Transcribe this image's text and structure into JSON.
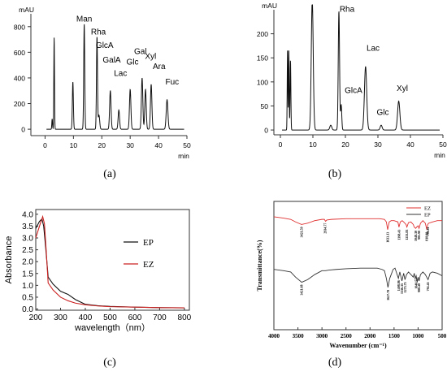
{
  "panel_labels": [
    "(a)",
    "(b)",
    "(c)",
    "(d)"
  ],
  "chart_data": [
    {
      "id": "a",
      "type": "line",
      "xlabel": "min",
      "ylabel": "mAU",
      "xlim": [
        -5,
        50
      ],
      "ylim": [
        -50,
        900
      ],
      "xticks": [
        0,
        10,
        20,
        30,
        40,
        50
      ],
      "yticks": [
        0,
        200,
        400,
        600,
        800
      ],
      "color": "#111111",
      "peaks": [
        {
          "t": 2.5,
          "h": 80,
          "w": 0.12
        },
        {
          "t": 3.2,
          "h": 715,
          "w": 0.12
        },
        {
          "t": 9.8,
          "h": 370,
          "w": 0.18
        },
        {
          "t": 13.8,
          "h": 820,
          "w": 0.18
        },
        {
          "t": 18.3,
          "h": 720,
          "w": 0.18
        },
        {
          "t": 19.0,
          "h": 110,
          "w": 0.25
        },
        {
          "t": 23.0,
          "h": 300,
          "w": 0.25
        },
        {
          "t": 26.0,
          "h": 150,
          "w": 0.25
        },
        {
          "t": 30.0,
          "h": 310,
          "w": 0.25
        },
        {
          "t": 34.2,
          "h": 400,
          "w": 0.25
        },
        {
          "t": 35.4,
          "h": 310,
          "w": 0.25
        },
        {
          "t": 37.4,
          "h": 350,
          "w": 0.25
        },
        {
          "t": 43.0,
          "h": 230,
          "w": 0.3
        }
      ],
      "annotations": [
        {
          "text": "Man",
          "t": 13.8,
          "y": 840
        },
        {
          "text": "Rha",
          "t": 18.8,
          "y": 740
        },
        {
          "text": "GlcA",
          "t": 21.0,
          "y": 635
        },
        {
          "text": "GalA",
          "t": 23.5,
          "y": 520
        },
        {
          "text": "Lac",
          "t": 26.6,
          "y": 415
        },
        {
          "text": "Glc",
          "t": 30.8,
          "y": 505
        },
        {
          "text": "Gal",
          "t": 33.6,
          "y": 585
        },
        {
          "text": "Xyl",
          "t": 37.2,
          "y": 548
        },
        {
          "text": "Ara",
          "t": 40.2,
          "y": 470
        },
        {
          "text": "Fuc",
          "t": 44.8,
          "y": 348
        }
      ]
    },
    {
      "id": "b",
      "type": "line",
      "xlabel": "min",
      "ylabel": "mAU",
      "xlim": [
        -2,
        50
      ],
      "ylim": [
        -10,
        250
      ],
      "xticks": [
        0,
        10,
        20,
        30,
        40,
        50
      ],
      "yticks": [
        0,
        50,
        100,
        150,
        200
      ],
      "color": "#111111",
      "peaks": [
        {
          "t": 2.2,
          "h": 170,
          "w": 0.1
        },
        {
          "t": 2.6,
          "h": 165,
          "w": 0.1
        },
        {
          "t": 3.1,
          "h": 145,
          "w": 0.12
        },
        {
          "t": 9.8,
          "h": 270,
          "w": 0.3
        },
        {
          "t": 15.5,
          "h": 10,
          "w": 0.3
        },
        {
          "t": 18.0,
          "h": 247,
          "w": 0.2
        },
        {
          "t": 18.7,
          "h": 52,
          "w": 0.18
        },
        {
          "t": 26.2,
          "h": 132,
          "w": 0.35
        },
        {
          "t": 31.0,
          "h": 10,
          "w": 0.3
        },
        {
          "t": 36.4,
          "h": 60,
          "w": 0.35
        }
      ],
      "annotations": [
        {
          "text": "Rha",
          "t": 20.5,
          "y": 246
        },
        {
          "text": "Lac",
          "t": 28.5,
          "y": 165
        },
        {
          "text": "GlcA",
          "t": 22.5,
          "y": 77
        },
        {
          "text": "Glc",
          "t": 31.5,
          "y": 31
        },
        {
          "text": "Xyl",
          "t": 37.5,
          "y": 81
        }
      ]
    },
    {
      "id": "c",
      "type": "line",
      "xlabel": "wavelength（nm）",
      "ylabel": "Absorbance",
      "xlim": [
        200,
        820
      ],
      "ylim": [
        -0.05,
        4.2
      ],
      "xticks": [
        200,
        300,
        400,
        500,
        600,
        700,
        800
      ],
      "yticks": [
        0.0,
        0.5,
        1.0,
        1.5,
        2.0,
        2.5,
        3.0,
        3.5,
        4.0
      ],
      "legend": "right",
      "series": [
        {
          "name": "EP",
          "color": "#111111",
          "x": [
            200,
            215,
            225,
            232,
            240,
            250,
            270,
            300,
            330,
            360,
            400,
            450,
            500,
            600,
            700,
            800
          ],
          "y": [
            3.4,
            3.7,
            3.8,
            3.5,
            2.6,
            1.35,
            1.05,
            0.75,
            0.62,
            0.4,
            0.2,
            0.14,
            0.11,
            0.08,
            0.06,
            0.05
          ]
        },
        {
          "name": "EZ",
          "color": "#cc2222",
          "x": [
            200,
            215,
            228,
            235,
            242,
            250,
            270,
            300,
            330,
            360,
            400,
            450,
            500,
            600,
            700,
            800
          ],
          "y": [
            3.0,
            3.5,
            3.9,
            3.6,
            2.5,
            1.1,
            0.8,
            0.5,
            0.35,
            0.25,
            0.18,
            0.13,
            0.1,
            0.08,
            0.06,
            0.05
          ]
        }
      ]
    },
    {
      "id": "d",
      "type": "line",
      "xlabel": "Wavenumber (cm⁻¹)",
      "ylabel": "Transmittance(%)",
      "xlim": [
        4000,
        500
      ],
      "ylim": [
        0,
        1
      ],
      "xticks": [
        4000,
        3500,
        3000,
        2500,
        2000,
        1500,
        1000,
        500
      ],
      "legend": "top-right",
      "series": [
        {
          "name": "EZ",
          "color": "#e03030",
          "x": [
            4000,
            3800,
            3650,
            3550,
            3425,
            3300,
            3150,
            3000,
            2950,
            2925,
            2900,
            2800,
            2500,
            2000,
            1800,
            1700,
            1660,
            1633,
            1600,
            1560,
            1500,
            1420,
            1398,
            1370,
            1330,
            1300,
            1250,
            1233,
            1200,
            1150,
            1100,
            1080,
            1050,
            1030,
            1000,
            980,
            950,
            900,
            850,
            818,
            800,
            780,
            700,
            600,
            500
          ],
          "y": [
            0.88,
            0.87,
            0.86,
            0.84,
            0.82,
            0.83,
            0.85,
            0.86,
            0.86,
            0.845,
            0.855,
            0.86,
            0.865,
            0.865,
            0.865,
            0.86,
            0.84,
            0.78,
            0.84,
            0.85,
            0.85,
            0.84,
            0.8,
            0.84,
            0.85,
            0.84,
            0.82,
            0.8,
            0.835,
            0.84,
            0.82,
            0.8,
            0.79,
            0.8,
            0.81,
            0.79,
            0.83,
            0.85,
            0.83,
            0.78,
            0.82,
            0.83,
            0.84,
            0.85,
            0.85
          ]
        },
        {
          "name": "EP",
          "color": "#333333",
          "x": [
            4000,
            3800,
            3650,
            3550,
            3421,
            3300,
            3150,
            3000,
            2930,
            2850,
            2700,
            2500,
            2200,
            2000,
            1850,
            1750,
            1700,
            1660,
            1627,
            1590,
            1560,
            1520,
            1480,
            1410,
            1380,
            1336,
            1300,
            1273,
            1240,
            1200,
            1150,
            1100,
            1080,
            1060,
            1040,
            1020,
            1000,
            980,
            950,
            900,
            850,
            792,
            750,
            700,
            600,
            500
          ],
          "y": [
            0.47,
            0.46,
            0.45,
            0.41,
            0.37,
            0.39,
            0.43,
            0.46,
            0.46,
            0.465,
            0.47,
            0.475,
            0.48,
            0.48,
            0.48,
            0.47,
            0.46,
            0.4,
            0.33,
            0.4,
            0.43,
            0.47,
            0.48,
            0.4,
            0.45,
            0.38,
            0.44,
            0.39,
            0.43,
            0.45,
            0.43,
            0.41,
            0.44,
            0.4,
            0.42,
            0.37,
            0.41,
            0.38,
            0.43,
            0.45,
            0.43,
            0.39,
            0.44,
            0.45,
            0.44,
            0.42
          ]
        }
      ],
      "annotations": [
        {
          "text": "3421.59",
          "series": "EZ",
          "x": 3421
        },
        {
          "text": "2934.77",
          "series": "EZ",
          "x": 2934
        },
        {
          "text": "1633.13",
          "series": "EZ",
          "x": 1633
        },
        {
          "text": "1398.43",
          "series": "EZ",
          "x": 1398
        },
        {
          "text": "1233.83",
          "series": "EZ",
          "x": 1233
        },
        {
          "text": "1048.30",
          "series": "EZ",
          "x": 1048
        },
        {
          "text": "981.90",
          "series": "EZ",
          "x": 981
        },
        {
          "text": "818.98",
          "series": "EZ",
          "x": 818
        },
        {
          "text": "798.81",
          "series": "EZ",
          "x": 799
        },
        {
          "text": "3421.68",
          "series": "EP",
          "x": 3421
        },
        {
          "text": "1627.78",
          "series": "EP",
          "x": 1627
        },
        {
          "text": "1408.86",
          "series": "EP",
          "x": 1408
        },
        {
          "text": "1336.35",
          "series": "EP",
          "x": 1336
        },
        {
          "text": "1273.75",
          "series": "EP",
          "x": 1273
        },
        {
          "text": "1040.57",
          "series": "EP",
          "x": 1040
        },
        {
          "text": "980.48",
          "series": "EP",
          "x": 980
        },
        {
          "text": "792.45",
          "series": "EP",
          "x": 792
        }
      ]
    }
  ]
}
